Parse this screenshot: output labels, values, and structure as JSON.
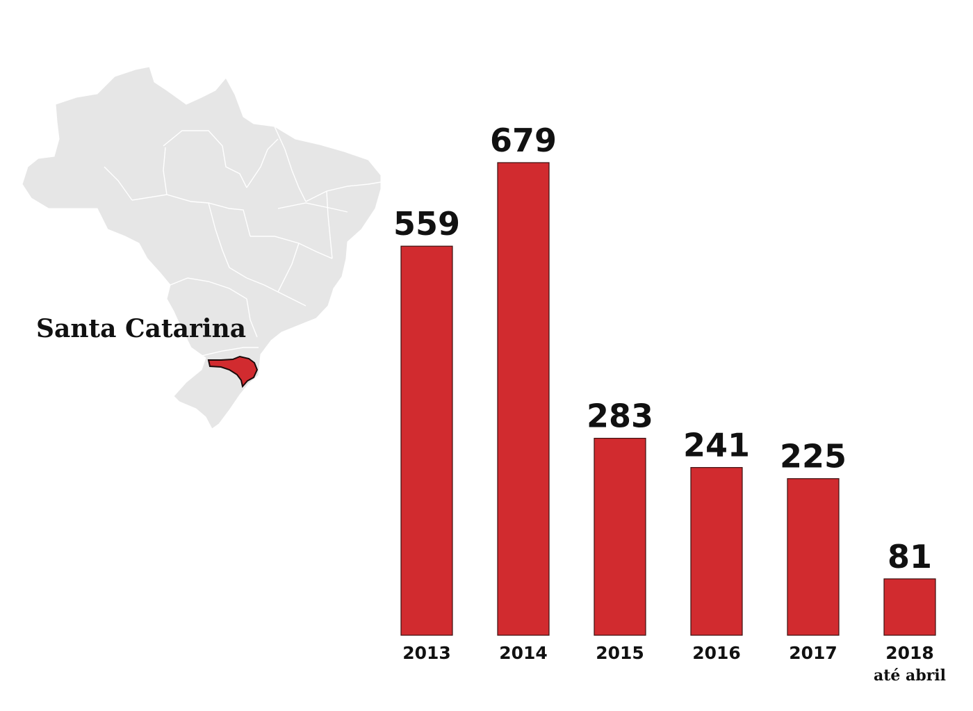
{
  "map": {
    "highlighted_region": "Santa Catarina",
    "base_color": "#e6e6e6",
    "border_color": "#ffffff",
    "highlight_color": "#d12b2f"
  },
  "chart_data": {
    "type": "bar",
    "categories": [
      "2013",
      "2014",
      "2015",
      "2016",
      "2017",
      "2018"
    ],
    "category_sublabels": [
      "",
      "",
      "",
      "",
      "",
      "até abril"
    ],
    "values": [
      559,
      679,
      283,
      241,
      225,
      81
    ],
    "value_labels": [
      "559",
      "679",
      "283",
      "241",
      "225",
      "81"
    ],
    "title": "",
    "xlabel": "",
    "ylabel": "",
    "ylim": [
      0,
      679
    ],
    "bar_color": "#d12b2f",
    "grid": false,
    "y_axis_shown": false
  }
}
